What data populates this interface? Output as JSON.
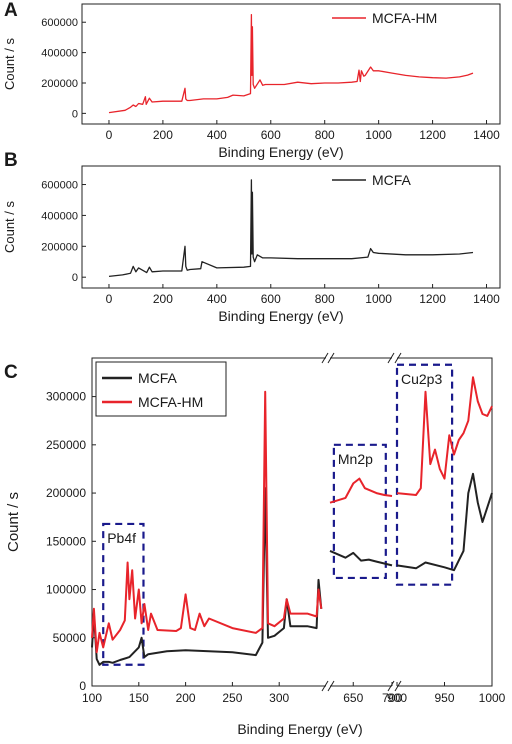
{
  "colors": {
    "mcfa": "#222222",
    "mcfa_hm": "#e8242b",
    "dashed_box": "#1a1a8c"
  },
  "chart_data": [
    {
      "panel": "A",
      "type": "line",
      "ylabel": "Count / s",
      "xlabel": "Binding Energy (eV)",
      "xlim": [
        -100,
        1450
      ],
      "ylim": [
        -70000,
        720000
      ],
      "xticks": [
        0,
        200,
        400,
        600,
        800,
        1000,
        1200,
        1400
      ],
      "yticks": [
        0,
        200000,
        400000,
        600000
      ],
      "legend": {
        "position": "top-right",
        "label": "MCFA-HM"
      },
      "series": [
        {
          "name": "MCFA-HM",
          "color": "#e8242b",
          "x": [
            0,
            60,
            80,
            90,
            100,
            110,
            125,
            135,
            138,
            150,
            160,
            200,
            270,
            282,
            285,
            290,
            300,
            350,
            400,
            440,
            460,
            500,
            525,
            528,
            530,
            532,
            535,
            540,
            560,
            570,
            580,
            650,
            700,
            750,
            800,
            850,
            900,
            920,
            927,
            932,
            936,
            945,
            950,
            970,
            980,
            1000,
            1050,
            1100,
            1150,
            1200,
            1250,
            1300,
            1330,
            1350
          ],
          "y": [
            5000,
            20000,
            40000,
            55000,
            45000,
            65000,
            60000,
            110000,
            60000,
            100000,
            75000,
            80000,
            80000,
            165000,
            95000,
            85000,
            85000,
            95000,
            95000,
            105000,
            120000,
            115000,
            130000,
            650000,
            250000,
            570000,
            190000,
            165000,
            220000,
            185000,
            190000,
            190000,
            205000,
            195000,
            200000,
            200000,
            205000,
            210000,
            285000,
            210000,
            280000,
            245000,
            250000,
            305000,
            280000,
            280000,
            265000,
            250000,
            240000,
            235000,
            232000,
            240000,
            252000,
            265000
          ]
        }
      ]
    },
    {
      "panel": "B",
      "type": "line",
      "ylabel": "Count / s",
      "xlabel": "Binding Energy (eV)",
      "xlim": [
        -100,
        1450
      ],
      "ylim": [
        -70000,
        720000
      ],
      "xticks": [
        0,
        200,
        400,
        600,
        800,
        1000,
        1200,
        1400
      ],
      "yticks": [
        0,
        200000,
        400000,
        600000
      ],
      "legend": {
        "position": "top-right",
        "label": "MCFA"
      },
      "series": [
        {
          "name": "MCFA",
          "color": "#222222",
          "x": [
            0,
            50,
            80,
            90,
            100,
            110,
            140,
            150,
            160,
            200,
            270,
            282,
            285,
            290,
            300,
            340,
            345,
            400,
            500,
            525,
            528,
            530,
            532,
            535,
            540,
            550,
            570,
            600,
            700,
            800,
            900,
            960,
            970,
            980,
            1000,
            1100,
            1200,
            1300,
            1350
          ],
          "y": [
            5000,
            15000,
            25000,
            70000,
            35000,
            60000,
            30000,
            65000,
            35000,
            40000,
            40000,
            200000,
            70000,
            45000,
            50000,
            55000,
            100000,
            60000,
            65000,
            70000,
            630000,
            150000,
            550000,
            130000,
            100000,
            145000,
            125000,
            125000,
            120000,
            120000,
            120000,
            130000,
            185000,
            160000,
            155000,
            145000,
            145000,
            150000,
            160000
          ]
        }
      ]
    },
    {
      "panel": "C",
      "type": "line",
      "ylabel": "Count / s",
      "xlabel": "Binding Energy (eV)",
      "xaxis": "broken",
      "segments": [
        {
          "xlim": [
            100,
            350
          ],
          "xticks": [
            100,
            150,
            200,
            250,
            300
          ]
        },
        {
          "xlim": [
            620,
            700
          ],
          "xticks": [
            650,
            700
          ]
        },
        {
          "xlim": [
            900,
            1000
          ],
          "xticks": [
            900,
            950,
            1000
          ]
        }
      ],
      "ylim": [
        0,
        340000
      ],
      "yticks": [
        0,
        50000,
        100000,
        150000,
        200000,
        250000,
        300000
      ],
      "legend": {
        "position": "top-left",
        "entries": [
          "MCFA",
          "MCFA-HM"
        ]
      },
      "annotations": [
        "Pb4f",
        "Mn2p",
        "Cu2p3"
      ],
      "series": [
        {
          "name": "MCFA",
          "color": "#222222",
          "x": [
            100,
            102,
            105,
            108,
            112,
            118,
            122,
            130,
            140,
            150,
            153,
            156,
            160,
            180,
            200,
            250,
            275,
            282,
            285,
            288,
            295,
            305,
            308,
            312,
            330,
            340,
            342,
            345,
            620,
            640,
            650,
            660,
            670,
            680,
            690,
            700,
            900,
            920,
            930,
            950,
            960,
            970,
            975,
            980,
            985,
            990,
            1000
          ],
          "y": [
            40000,
            75000,
            28000,
            22000,
            25000,
            25000,
            24000,
            27000,
            30000,
            40000,
            50000,
            30000,
            33000,
            36000,
            37000,
            35000,
            32000,
            45000,
            205000,
            50000,
            52000,
            60000,
            90000,
            62000,
            62000,
            60000,
            110000,
            80000,
            140000,
            133000,
            138000,
            130000,
            131000,
            129000,
            127000,
            125000,
            125000,
            122000,
            128000,
            123000,
            120000,
            140000,
            200000,
            220000,
            190000,
            170000,
            200000
          ]
        },
        {
          "name": "MCFA-HM",
          "color": "#e8242b",
          "x": [
            100,
            102,
            105,
            108,
            112,
            118,
            122,
            130,
            135,
            138,
            140,
            143,
            146,
            150,
            153,
            156,
            160,
            163,
            170,
            190,
            195,
            200,
            205,
            210,
            215,
            220,
            225,
            250,
            275,
            282,
            285,
            288,
            295,
            305,
            308,
            312,
            330,
            340,
            342,
            345,
            620,
            640,
            650,
            658,
            665,
            680,
            690,
            700,
            900,
            920,
            925,
            930,
            935,
            940,
            945,
            950,
            955,
            960,
            965,
            970,
            975,
            980,
            985,
            990,
            995,
            1000
          ],
          "y": [
            50000,
            80000,
            35000,
            55000,
            40000,
            65000,
            48000,
            58000,
            68000,
            128000,
            90000,
            120000,
            70000,
            100000,
            65000,
            85000,
            58000,
            75000,
            58000,
            57000,
            60000,
            95000,
            60000,
            58000,
            75000,
            62000,
            70000,
            60000,
            55000,
            60000,
            305000,
            65000,
            62000,
            70000,
            90000,
            75000,
            75000,
            72000,
            100000,
            80000,
            190000,
            195000,
            210000,
            215000,
            205000,
            200000,
            198000,
            197000,
            200000,
            198000,
            205000,
            305000,
            230000,
            245000,
            225000,
            215000,
            260000,
            240000,
            255000,
            262000,
            275000,
            320000,
            295000,
            282000,
            280000,
            290000
          ]
        }
      ]
    }
  ]
}
